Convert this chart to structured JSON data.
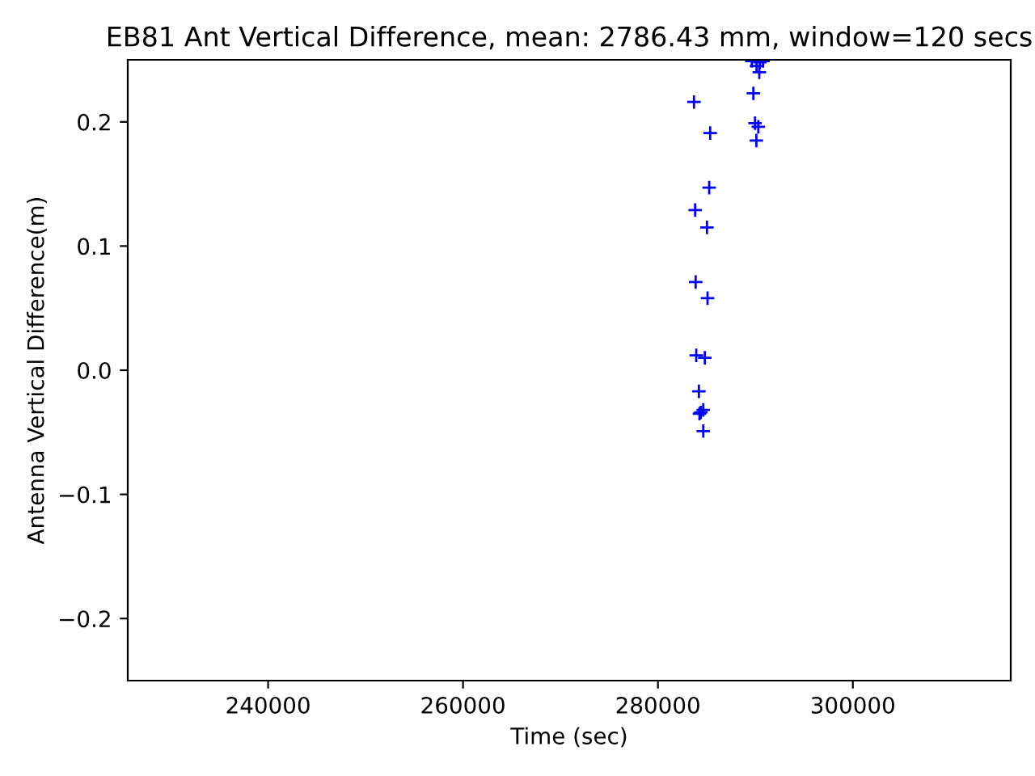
{
  "chart_data": {
    "type": "scatter",
    "title": "EB81 Ant Vertical Difference, mean: 2786.43 mm, window=120 secs",
    "xlabel": "Time (sec)",
    "ylabel": "Antenna Vertical Difference(m)",
    "x": [
      283700,
      289790,
      289960,
      290300,
      290100,
      290400,
      289630,
      290460,
      290790,
      290120,
      285360,
      285260,
      283820,
      285030,
      283870,
      285090,
      283930,
      284810,
      284200,
      284650,
      284260,
      284400,
      284650
    ],
    "values": [
      0.216,
      0.223,
      0.199,
      0.196,
      0.185,
      0.24,
      0.249,
      0.248,
      0.249,
      0.245,
      0.191,
      0.147,
      0.129,
      0.115,
      0.071,
      0.058,
      0.012,
      0.01,
      -0.017,
      -0.032,
      -0.035,
      -0.034,
      -0.049
    ],
    "color": "#0000ff",
    "marker": "cross",
    "xlim": [
      225600,
      316200
    ],
    "ylim": [
      -0.25,
      0.25
    ],
    "xticks": [
      240000,
      260000,
      280000,
      300000
    ],
    "yticks": [
      {
        "value": -0.2,
        "label": "−0.2"
      },
      {
        "value": -0.1,
        "label": "−0.1"
      },
      {
        "value": 0,
        "label": "0.0"
      },
      0.1,
      0.2
    ]
  }
}
